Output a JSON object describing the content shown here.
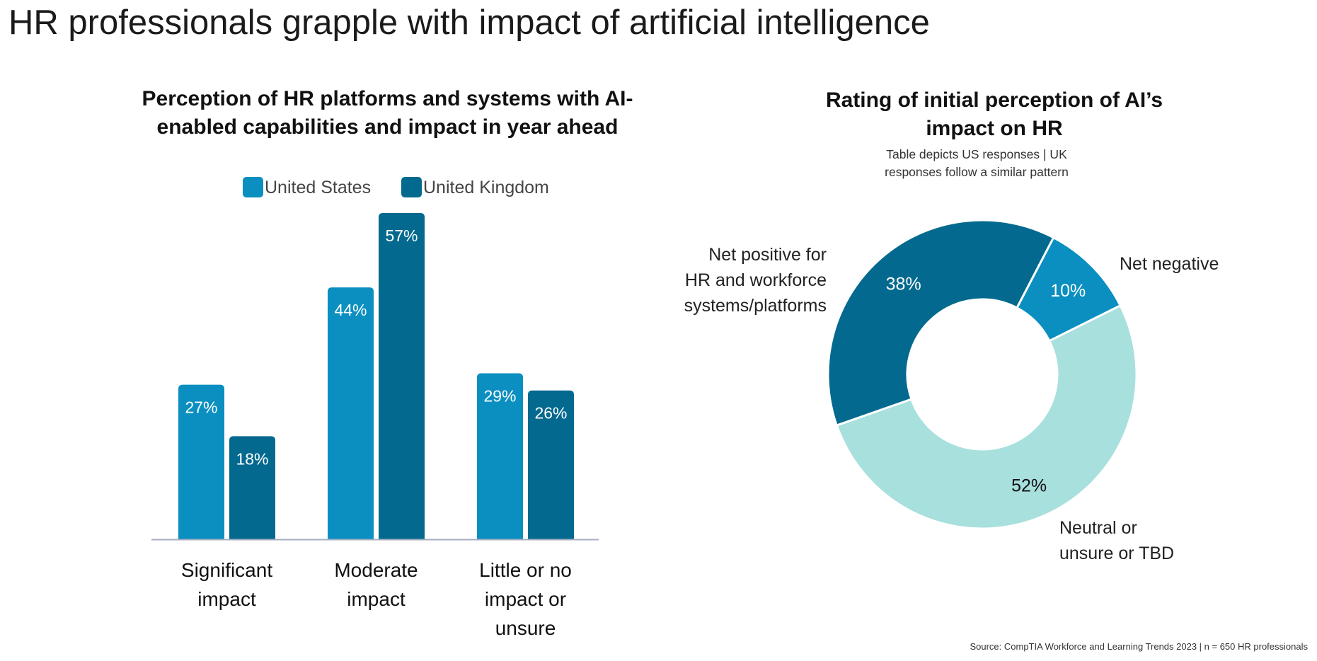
{
  "page": {
    "title": "HR professionals grapple with impact of artificial intelligence",
    "source": "Source: CompTIA Workforce and Learning Trends 2023 | n = 650 HR professionals"
  },
  "colors": {
    "us": "#0a8fc0",
    "uk": "#04698f",
    "neutral": "#a8e0de",
    "axis": "#a6aebf"
  },
  "chart_data": [
    {
      "type": "bar",
      "title_lines": [
        "Perception of HR platforms and systems with AI-",
        "enabled capabilities and impact in year ahead"
      ],
      "categories": [
        [
          "Significant",
          "impact"
        ],
        [
          "Moderate",
          "impact"
        ],
        [
          "Little or no",
          "impact or",
          "unsure"
        ]
      ],
      "series": [
        {
          "name": "United States",
          "values": [
            27,
            44,
            29
          ],
          "labels": [
            "27%",
            "44%",
            "29%"
          ]
        },
        {
          "name": "United Kingdom",
          "values": [
            18,
            57,
            26
          ],
          "labels": [
            "18%",
            "57%",
            "26%"
          ]
        }
      ],
      "ylim": [
        0,
        57
      ],
      "legend": "top-center"
    },
    {
      "type": "pie",
      "title_lines": [
        "Rating of initial perception of AI’s",
        "impact on HR"
      ],
      "note_lines": [
        "Table depicts US responses | UK",
        "responses follow a similar pattern"
      ],
      "slices": [
        {
          "name": "Net negative",
          "label_lines": [
            "Net negative"
          ],
          "value": 10,
          "value_label": "10%"
        },
        {
          "name": "Neutral or unsure or TBD",
          "label_lines": [
            "Neutral or",
            "unsure or TBD"
          ],
          "value": 52,
          "value_label": "52%"
        },
        {
          "name": "Net positive for HR and workforce systems/platforms",
          "label_lines": [
            "Net positive for",
            "HR and workforce",
            "systems/platforms"
          ],
          "value": 38,
          "value_label": "38%"
        }
      ]
    }
  ]
}
